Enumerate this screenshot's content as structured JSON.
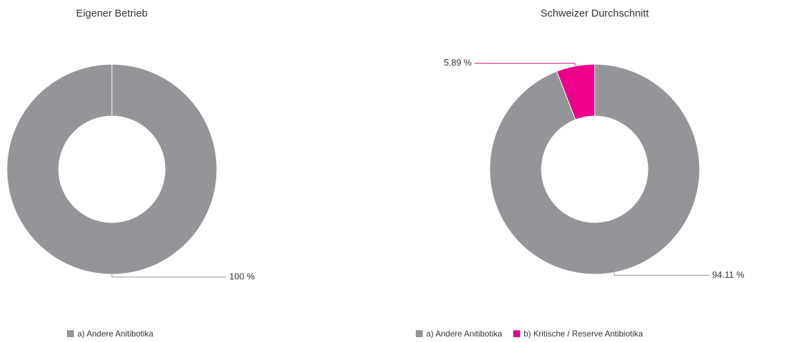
{
  "chart_data": [
    {
      "type": "donut",
      "title": "Eigener Betrieb",
      "categories": [
        "a) Andere Anitibotika"
      ],
      "values": [
        100
      ],
      "value_labels": [
        "100 %"
      ],
      "colors": [
        "#939598"
      ]
    },
    {
      "type": "donut",
      "title": "Schweizer Durchschnitt",
      "categories": [
        "a) Andere Anitibotika",
        "b) Kritische / Reserve Antibiotika"
      ],
      "values": [
        94.11,
        5.89
      ],
      "value_labels": [
        "94.11 %",
        "5.89 %"
      ],
      "colors": [
        "#939598",
        "#ec008c"
      ]
    }
  ]
}
